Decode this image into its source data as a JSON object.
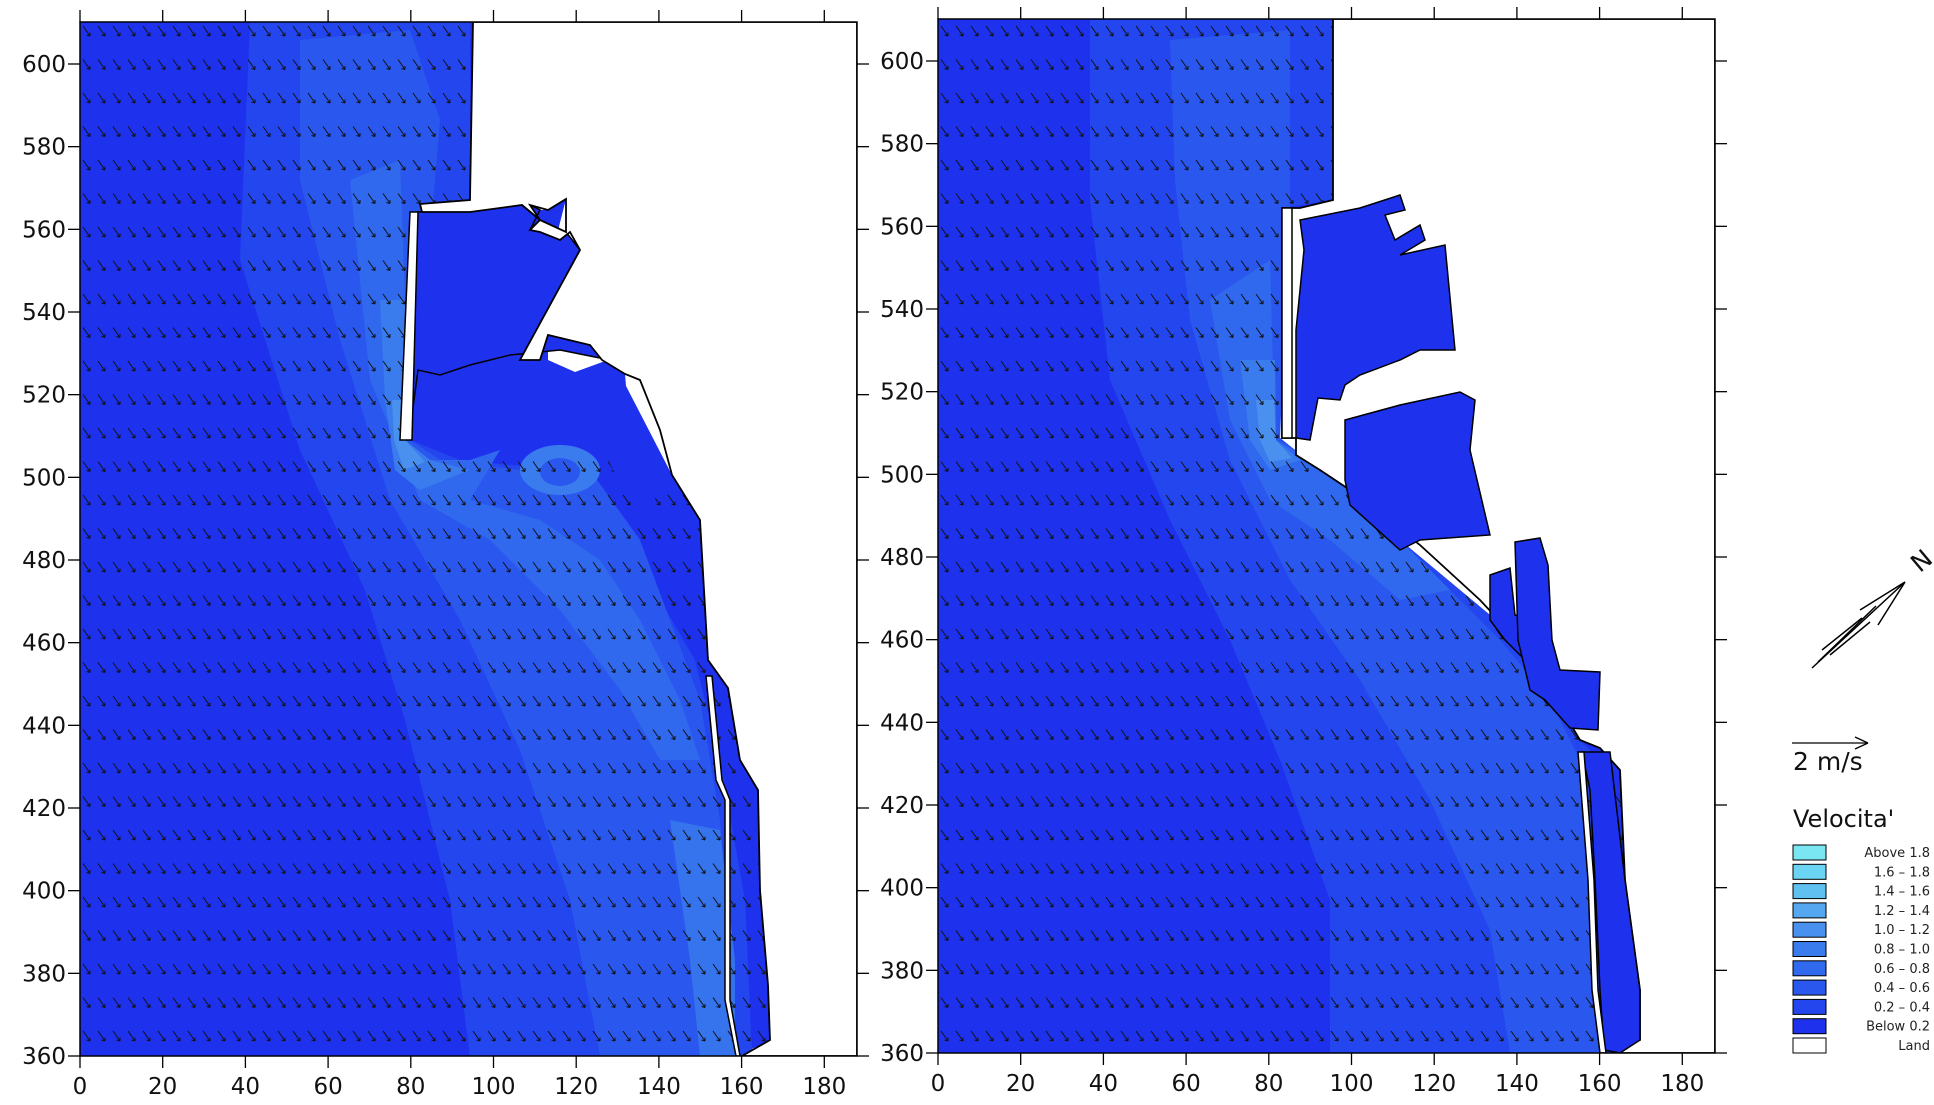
{
  "colors": {
    "c_below": "#1e32ee",
    "c_0204": "#2446ee",
    "c_0406": "#2a58ee",
    "c_0608": "#3068ee",
    "c_0810": "#3a7cee",
    "c_1012": "#4a90ee",
    "c_1214": "#55a8ef",
    "c_1416": "#60c0f0",
    "c_1618": "#6ad4f2",
    "c_above": "#7ae6f2",
    "land": "#ffffff",
    "frame": "#000000"
  },
  "maps": [
    {
      "x_ticks": [
        "0",
        "20",
        "40",
        "60",
        "80",
        "100",
        "120",
        "140",
        "160",
        "180"
      ],
      "y_ticks": [
        "360",
        "380",
        "400",
        "420",
        "440",
        "460",
        "480",
        "500",
        "520",
        "540",
        "560",
        "580",
        "600"
      ]
    },
    {
      "x_ticks": [
        "0",
        "20",
        "40",
        "60",
        "80",
        "100",
        "120",
        "140",
        "160",
        "180"
      ],
      "y_ticks": [
        "360",
        "380",
        "400",
        "420",
        "440",
        "460",
        "480",
        "500",
        "520",
        "540",
        "560",
        "580",
        "600"
      ]
    }
  ],
  "north_arrow": {
    "label": "N",
    "icon": "north-arrow-icon"
  },
  "scale_arrow": {
    "label": "2 m/s",
    "icon": "arrow-right-icon"
  },
  "legend": {
    "title": "Velocita'",
    "items": [
      {
        "label": "Above    1.8",
        "color_key": "c_above"
      },
      {
        "label": "1.6  –  1.8",
        "color_key": "c_1618"
      },
      {
        "label": "1.4  –  1.6",
        "color_key": "c_1416"
      },
      {
        "label": "1.2  –  1.4",
        "color_key": "c_1214"
      },
      {
        "label": "1.0  –  1.2",
        "color_key": "c_1012"
      },
      {
        "label": "0.8  –  1.0",
        "color_key": "c_0810"
      },
      {
        "label": "0.6  –  0.8",
        "color_key": "c_0608"
      },
      {
        "label": "0.4  –  0.6",
        "color_key": "c_0406"
      },
      {
        "label": "0.2  –  0.4",
        "color_key": "c_0204"
      },
      {
        "label": "Below    0.2",
        "color_key": "c_below"
      },
      {
        "label": "Land",
        "color_key": "land"
      }
    ]
  }
}
